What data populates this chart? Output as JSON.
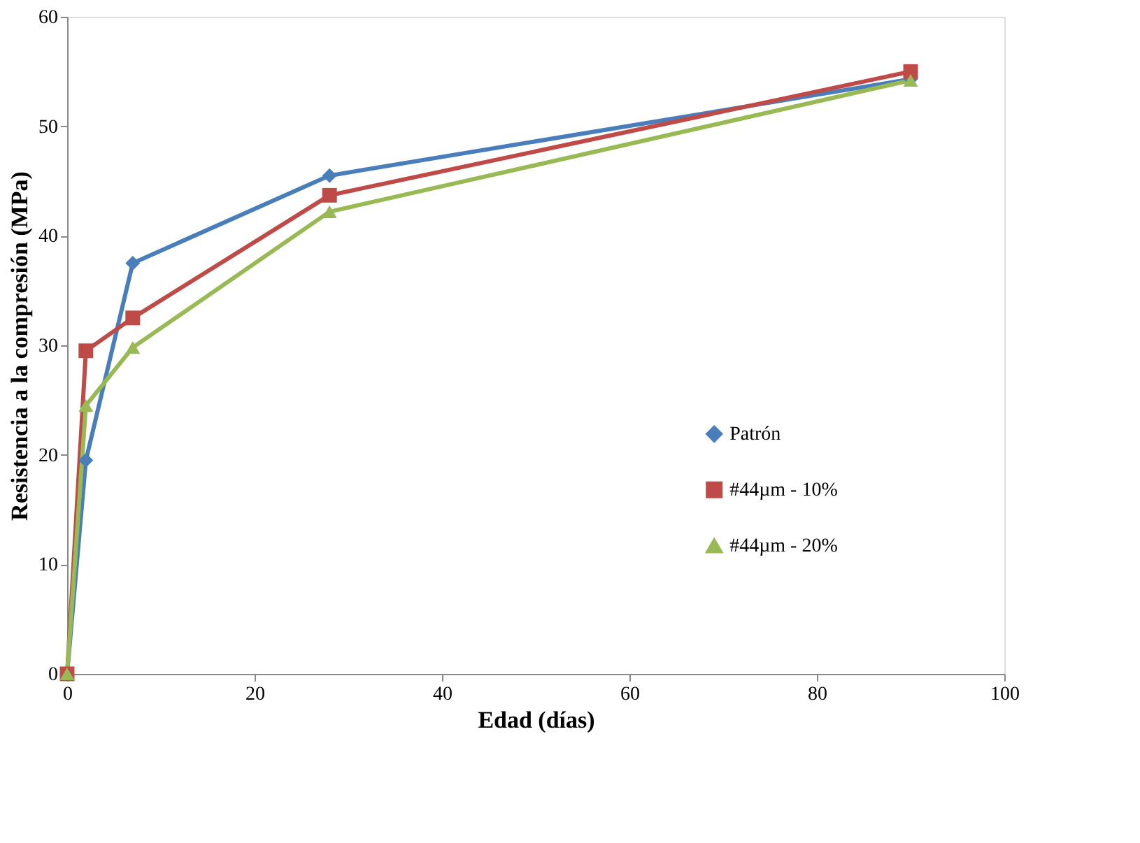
{
  "chart_data": {
    "type": "line",
    "xlabel": "Edad (días)",
    "ylabel": "Resistencia a la compresión (MPa)",
    "x": [
      0,
      2,
      7,
      28,
      90
    ],
    "series": [
      {
        "name": "Patrón",
        "color": "#4a7ebb",
        "marker": "diamond",
        "values": [
          0,
          19.5,
          37.5,
          45.5,
          54.3
        ]
      },
      {
        "name": "#44µm - 10%",
        "color": "#be4b48",
        "marker": "square",
        "values": [
          0,
          29.5,
          32.5,
          43.7,
          55.0
        ]
      },
      {
        "name": "#44µm - 20%",
        "color": "#98b954",
        "marker": "triangle",
        "values": [
          0,
          24.5,
          29.8,
          42.2,
          54.2
        ]
      }
    ],
    "xlim": [
      0,
      100
    ],
    "xticks": [
      0,
      20,
      40,
      60,
      80,
      100
    ],
    "ylim": [
      0,
      60
    ],
    "yticks": [
      0,
      10,
      20,
      30,
      40,
      50,
      60
    ],
    "grid": false,
    "legend": "right",
    "line_style": "solid"
  }
}
